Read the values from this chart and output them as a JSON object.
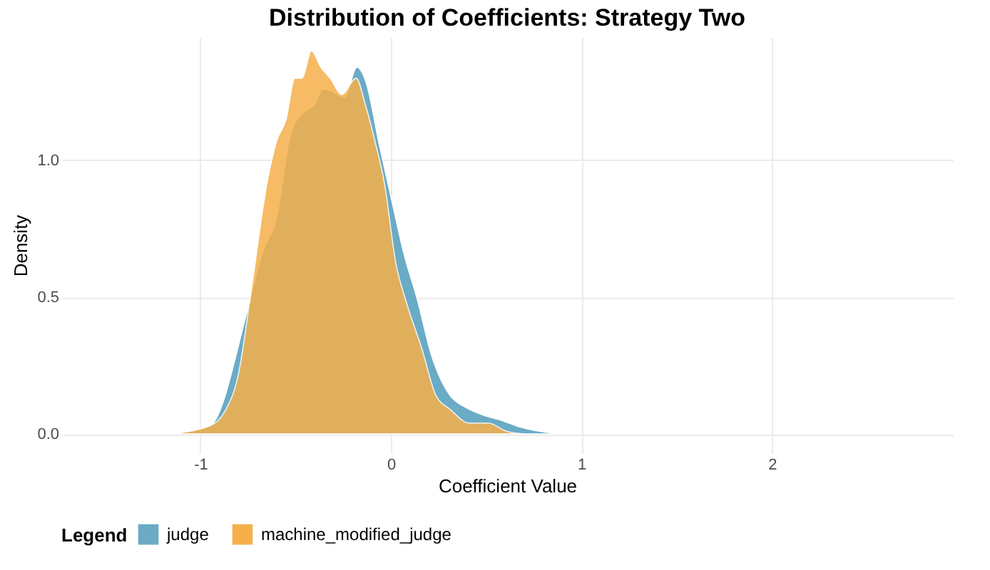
{
  "chart_data": {
    "type": "area",
    "title": "Distribution of Coefficients: Strategy Two",
    "xlabel": "Coefficient Value",
    "ylabel": "Density",
    "legend_title": "Legend",
    "legend": "bottom",
    "grid": true,
    "xlim": [
      -1.73,
      2.95
    ],
    "xticks": [
      -1,
      0,
      1,
      2
    ],
    "ylim": [
      -0.07,
      1.45
    ],
    "yticks": [
      {
        "value": 0,
        "label": "0.0"
      },
      {
        "value": 0.5,
        "label": "0.5"
      },
      {
        "value": 1,
        "label": "1.0"
      }
    ],
    "series": [
      {
        "name": "judge",
        "color": "#6aabc6",
        "x": [
          -1.17,
          -0.95,
          -0.75,
          -0.676,
          -0.6,
          -0.528,
          -0.467,
          -0.405,
          -0.356,
          -0.306,
          -0.244,
          -0.178,
          -0.133,
          -0.059,
          0.015,
          0.064,
          0.139,
          0.212,
          0.311,
          0.385,
          0.48,
          0.58,
          0.68,
          0.78,
          0.95
        ],
        "values": [
          0,
          0.03,
          0.46,
          0.66,
          0.79,
          1.09,
          1.17,
          1.2,
          1.26,
          1.25,
          1.23,
          1.34,
          1.29,
          1.05,
          0.82,
          0.67,
          0.49,
          0.29,
          0.14,
          0.1,
          0.07,
          0.05,
          0.025,
          0.01,
          0
        ]
      },
      {
        "name": "machine_modified_judge",
        "color": "#f5b04a",
        "x": [
          -1.17,
          -0.95,
          -0.874,
          -0.8,
          -0.726,
          -0.652,
          -0.6,
          -0.55,
          -0.504,
          -0.467,
          -0.417,
          -0.368,
          -0.319,
          -0.257,
          -0.183,
          -0.133,
          -0.084,
          -0.035,
          0.027,
          0.077,
          0.163,
          0.237,
          0.311,
          0.41,
          0.51,
          0.607,
          0.7
        ],
        "values": [
          0,
          0.03,
          0.08,
          0.22,
          0.56,
          0.91,
          1.07,
          1.15,
          1.3,
          1.3,
          1.4,
          1.34,
          1.3,
          1.24,
          1.3,
          1.2,
          1.07,
          0.92,
          0.62,
          0.49,
          0.31,
          0.14,
          0.09,
          0.04,
          0.04,
          0.01,
          0
        ]
      }
    ]
  }
}
